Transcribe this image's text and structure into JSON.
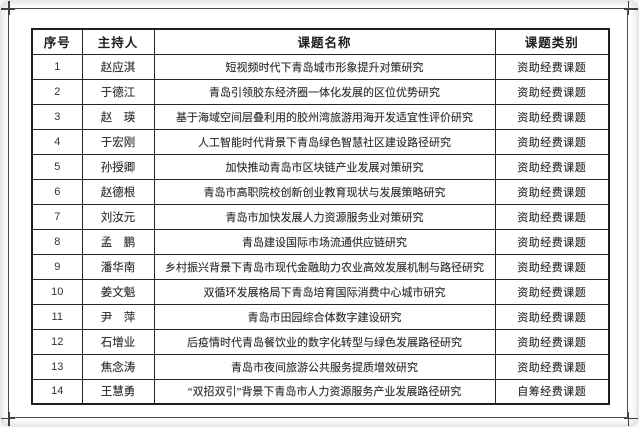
{
  "table": {
    "headers": [
      "序号",
      "主持人",
      "课题名称",
      "课题类别"
    ],
    "rows": [
      {
        "no": "1",
        "host": "赵应淇",
        "title": "短视频时代下青岛城市形象提升对策研究",
        "category": "资助经费课题"
      },
      {
        "no": "2",
        "host": "于德江",
        "title": "青岛引领胶东经济圈一体化发展的区位优势研究",
        "category": "资助经费课题"
      },
      {
        "no": "3",
        "host": "赵　瑛",
        "title": "基于海域空间层叠利用的胶州湾旅游用海开发适宜性评价研究",
        "category": "资助经费课题"
      },
      {
        "no": "4",
        "host": "于宏刚",
        "title": "人工智能时代背景下青岛绿色智慧社区建设路径研究",
        "category": "资助经费课题"
      },
      {
        "no": "5",
        "host": "孙授卿",
        "title": "加快推动青岛市区块链产业发展对策研究",
        "category": "资助经费课题"
      },
      {
        "no": "6",
        "host": "赵德根",
        "title": "青岛市高职院校创新创业教育现状与发展策略研究",
        "category": "资助经费课题"
      },
      {
        "no": "7",
        "host": "刘汝元",
        "title": "青岛市加快发展人力资源服务业对策研究",
        "category": "资助经费课题"
      },
      {
        "no": "8",
        "host": "孟　鹏",
        "title": "青岛建设国际市场流通供应链研究",
        "category": "资助经费课题"
      },
      {
        "no": "9",
        "host": "潘华南",
        "title": "乡村振兴背景下青岛市现代金融助力农业高效发展机制与路径研究",
        "category": "资助经费课题"
      },
      {
        "no": "10",
        "host": "姜文魁",
        "title": "双循环发展格局下青岛培育国际消费中心城市研究",
        "category": "资助经费课题"
      },
      {
        "no": "11",
        "host": "尹　萍",
        "title": "青岛市田园综合体数字建设研究",
        "category": "资助经费课题"
      },
      {
        "no": "12",
        "host": "石增业",
        "title": "后疫情时代青岛餐饮业的数字化转型与绿色发展路径研究",
        "category": "资助经费课题"
      },
      {
        "no": "13",
        "host": "焦念涛",
        "title": "青岛市夜间旅游公共服务提质增效研究",
        "category": "资助经费课题"
      },
      {
        "no": "14",
        "host": "王慧勇",
        "title": "“双招双引”背景下青岛市人力资源服务产业发展路径研究",
        "category": "自筹经费课题"
      }
    ]
  },
  "colors": {
    "page_bg": "#ffffff",
    "frame_line": "#4c4c4c",
    "table_border": "#1f1f1f",
    "text": "#2e2e2e"
  }
}
